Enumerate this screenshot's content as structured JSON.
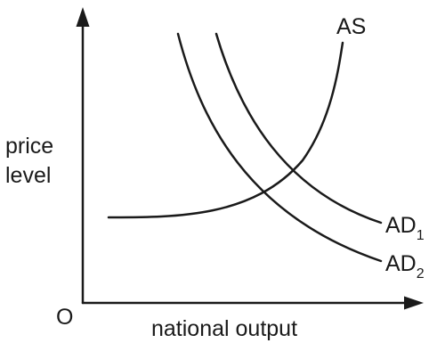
{
  "axes": {
    "y_label_line1": "price",
    "y_label_line2": "level",
    "x_label": "national output",
    "origin_label": "O"
  },
  "curves": {
    "as": {
      "name": "AS"
    },
    "ad1": {
      "base": "AD",
      "subscript": "1"
    },
    "ad2": {
      "base": "AD",
      "subscript": "2"
    }
  }
}
